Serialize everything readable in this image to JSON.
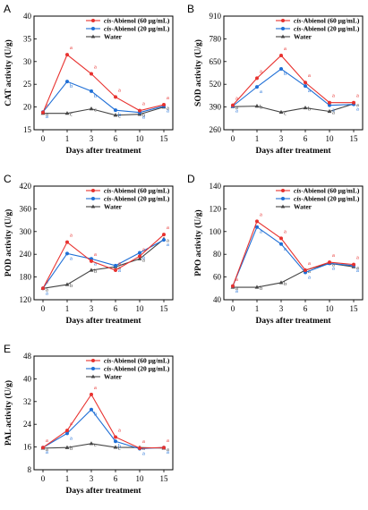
{
  "figure": {
    "legend": {
      "entries": [
        {
          "prefix": "cis",
          "suffix": "-Abienol (60 μg/mL)"
        },
        {
          "prefix": "cis",
          "suffix": "-Abienol (20 μg/mL)"
        },
        {
          "prefix": "",
          "suffix": "Water"
        }
      ]
    }
  },
  "chart_data": [
    {
      "panel": "A",
      "type": "line",
      "xlabel": "Days after treatment",
      "ylabel": "CAT activity (U/g)",
      "x": [
        0,
        1,
        3,
        6,
        10,
        15
      ],
      "xticks": [
        "0",
        "1",
        "3",
        "6",
        "10",
        "15"
      ],
      "ylim": [
        15,
        40
      ],
      "yticks": [
        15,
        20,
        25,
        30,
        35,
        40
      ],
      "grid": false,
      "legend_position": "top-right",
      "series": [
        {
          "name": "cis-Abienol (60 μg/mL)",
          "color": "#e8322f",
          "marker": "circle",
          "values": [
            18.8,
            31.5,
            27.3,
            22.2,
            19.2,
            20.5
          ],
          "letters": [
            "a",
            "a",
            "a",
            "a",
            "a",
            "a"
          ]
        },
        {
          "name": "cis-Abienol (20 μg/mL)",
          "color": "#1f6fd6",
          "marker": "circle",
          "values": [
            18.9,
            25.6,
            23.5,
            19.3,
            18.8,
            20.2
          ],
          "letters": [
            "a",
            "b",
            "b",
            "b",
            "a",
            "a"
          ]
        },
        {
          "name": "Water",
          "color": "#444444",
          "marker": "triangle",
          "values": [
            18.6,
            18.6,
            19.6,
            18.2,
            18.4,
            20.0
          ],
          "letters": [
            "a",
            "c",
            "c",
            "c",
            "b",
            "a"
          ]
        }
      ]
    },
    {
      "panel": "B",
      "type": "line",
      "xlabel": "Days after treatment",
      "ylabel": "SOD activity (U/g)",
      "x": [
        0,
        1,
        3,
        6,
        10,
        15
      ],
      "xticks": [
        "0",
        "1",
        "3",
        "6",
        "10",
        "15"
      ],
      "ylim": [
        260,
        910
      ],
      "yticks": [
        260,
        390,
        520,
        650,
        780,
        910
      ],
      "grid": false,
      "legend_position": "top-right",
      "series": [
        {
          "name": "cis-Abienol (60 μg/mL)",
          "color": "#e8322f",
          "marker": "circle",
          "values": [
            400,
            555,
            685,
            530,
            415,
            415
          ],
          "letters": [
            "a",
            "a",
            "a",
            "a",
            "a",
            "a"
          ]
        },
        {
          "name": "cis-Abienol (20 μg/mL)",
          "color": "#1f6fd6",
          "marker": "circle",
          "values": [
            395,
            505,
            608,
            510,
            400,
            405
          ],
          "letters": [
            "a",
            "a",
            "b",
            "a",
            "a",
            "a"
          ]
        },
        {
          "name": "Water",
          "color": "#444444",
          "marker": "triangle",
          "values": [
            392,
            395,
            360,
            385,
            365,
            408
          ],
          "letters": [
            "a",
            "b",
            "c",
            "b",
            "a",
            "a"
          ]
        }
      ]
    },
    {
      "panel": "C",
      "type": "line",
      "xlabel": "Days after treatment",
      "ylabel": "POD activity (U/g)",
      "x": [
        0,
        1,
        3,
        6,
        10,
        15
      ],
      "xticks": [
        "0",
        "1",
        "3",
        "6",
        "10",
        "15"
      ],
      "ylim": [
        120,
        420
      ],
      "yticks": [
        120,
        180,
        240,
        300,
        360,
        420
      ],
      "grid": false,
      "legend_position": "top-right",
      "series": [
        {
          "name": "cis-Abienol (60 μg/mL)",
          "color": "#e8322f",
          "marker": "circle",
          "values": [
            150,
            272,
            222,
            198,
            235,
            292
          ],
          "letters": [
            "a",
            "a",
            "a",
            "a",
            "a",
            "a"
          ]
        },
        {
          "name": "cis-Abienol (20 μg/mL)",
          "color": "#1f6fd6",
          "marker": "circle",
          "values": [
            150,
            242,
            228,
            210,
            244,
            278
          ],
          "letters": [
            "a",
            "a",
            "a",
            "a",
            "a",
            "a"
          ]
        },
        {
          "name": "Water",
          "color": "#444444",
          "marker": "triangle",
          "values": [
            150,
            160,
            198,
            207,
            228,
            280
          ],
          "letters": [
            "a",
            "b",
            "b",
            "a",
            "a",
            "a"
          ]
        }
      ]
    },
    {
      "panel": "D",
      "type": "line",
      "xlabel": "Days after treatment",
      "ylabel": "PPO activity (U/g)",
      "x": [
        0,
        1,
        3,
        6,
        10,
        15
      ],
      "xticks": [
        "0",
        "1",
        "3",
        "6",
        "10",
        "15"
      ],
      "ylim": [
        40,
        140
      ],
      "yticks": [
        40,
        60,
        80,
        100,
        120,
        140
      ],
      "grid": false,
      "legend_position": "top-right",
      "series": [
        {
          "name": "cis-Abienol (60 μg/mL)",
          "color": "#e8322f",
          "marker": "circle",
          "values": [
            52,
            109,
            94,
            66,
            73,
            71
          ],
          "letters": [
            "a",
            "a",
            "a",
            "a",
            "a",
            "a"
          ]
        },
        {
          "name": "cis-Abienol (20 μg/mL)",
          "color": "#1f6fd6",
          "marker": "circle",
          "values": [
            52,
            104,
            89,
            64,
            72,
            70
          ],
          "letters": [
            "a",
            "a",
            "a",
            "a",
            "a",
            "a"
          ]
        },
        {
          "name": "Water",
          "color": "#444444",
          "marker": "triangle",
          "values": [
            51,
            51,
            55,
            66,
            72,
            69
          ],
          "letters": [
            "a",
            "b",
            "b",
            "a",
            "a",
            "a"
          ]
        }
      ]
    },
    {
      "panel": "E",
      "type": "line",
      "xlabel": "Days after treatment",
      "ylabel": "PAL activity (U/g)",
      "x": [
        0,
        1,
        3,
        6,
        10,
        15
      ],
      "xticks": [
        "0",
        "1",
        "3",
        "6",
        "10",
        "15"
      ],
      "ylim": [
        8,
        48
      ],
      "yticks": [
        8,
        16,
        24,
        32,
        40,
        48
      ],
      "grid": false,
      "legend_position": "top-right",
      "series": [
        {
          "name": "cis-Abienol (60 μg/mL)",
          "color": "#e8322f",
          "marker": "circle",
          "values": [
            15.8,
            21.8,
            34.5,
            19.5,
            15.6,
            15.8
          ],
          "letters": [
            "a",
            "a",
            "a",
            "a",
            "a",
            "a"
          ]
        },
        {
          "name": "cis-Abienol (20 μg/mL)",
          "color": "#1f6fd6",
          "marker": "circle",
          "values": [
            15.8,
            20.8,
            29.2,
            18.0,
            15.4,
            15.8
          ],
          "letters": [
            "a",
            "a",
            "b",
            "b",
            "a",
            "a"
          ]
        },
        {
          "name": "Water",
          "color": "#444444",
          "marker": "triangle",
          "values": [
            15.6,
            15.8,
            17.2,
            15.9,
            15.8,
            15.6
          ],
          "letters": [
            "a",
            "b",
            "c",
            "c",
            "a",
            "a"
          ]
        }
      ]
    }
  ]
}
